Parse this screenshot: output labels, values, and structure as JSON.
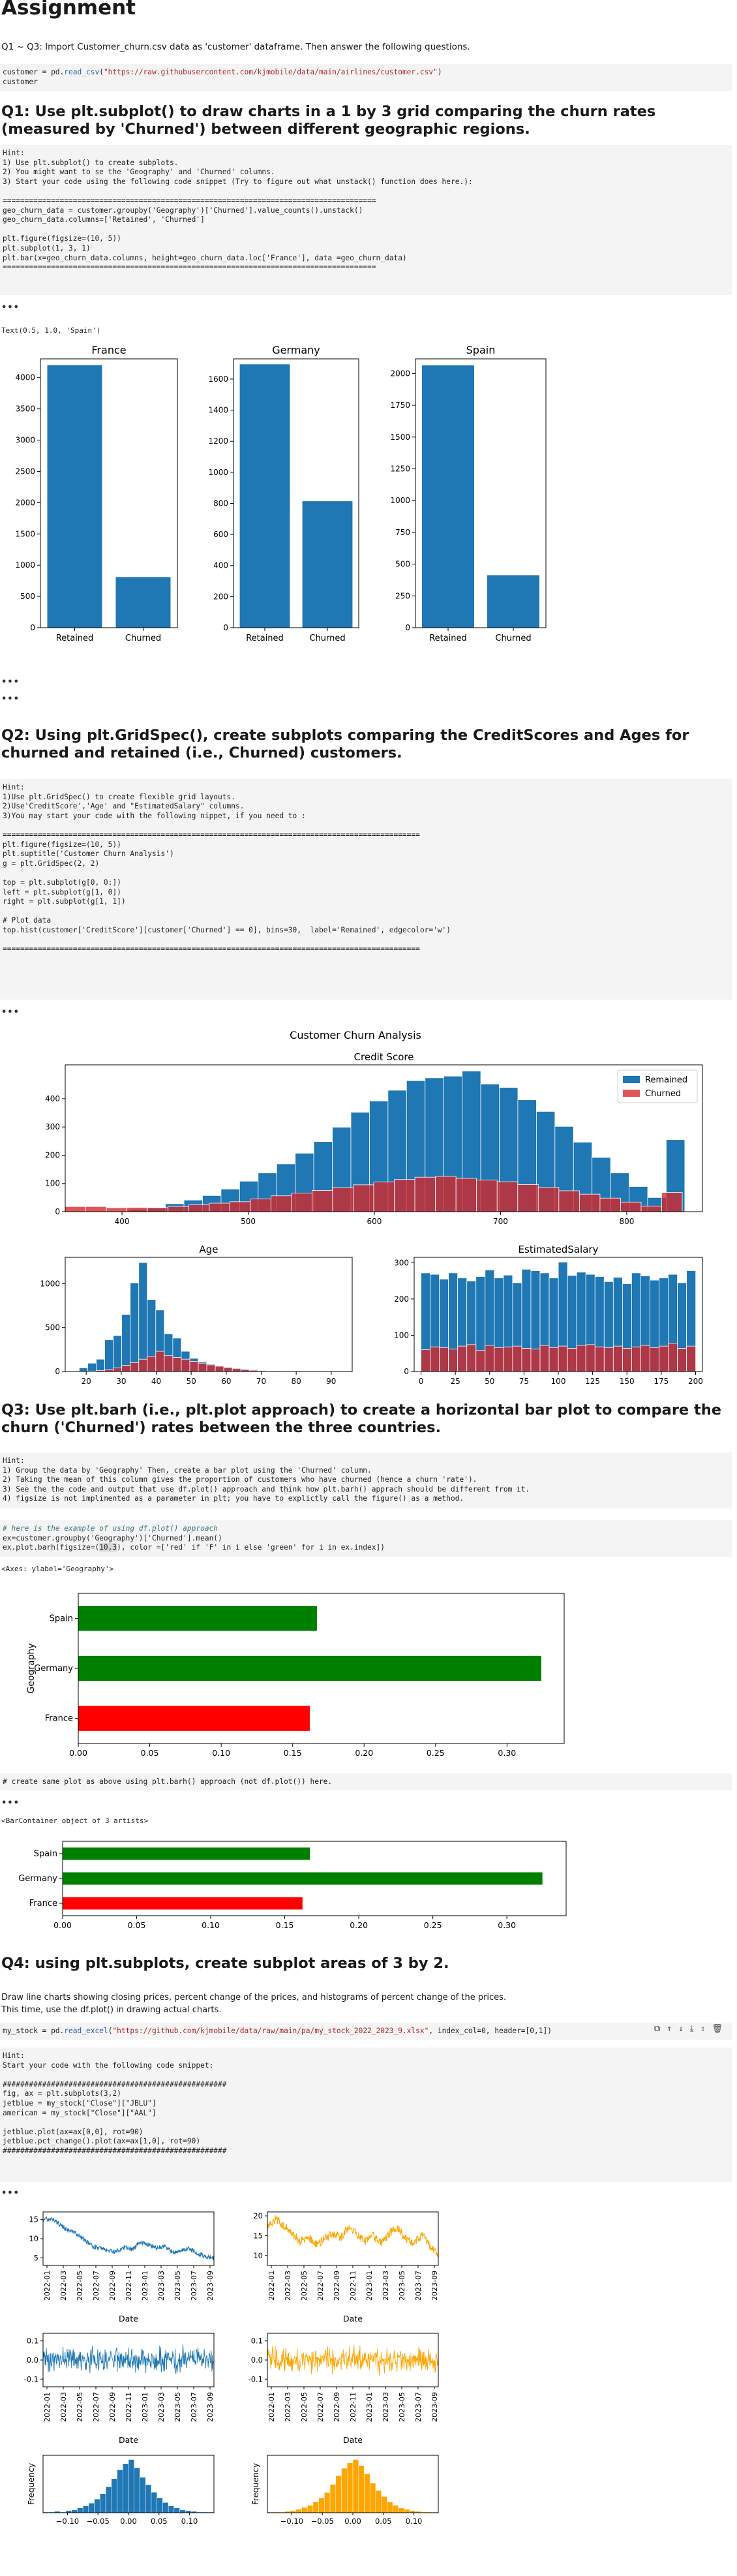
{
  "title": "Assignment",
  "intro": "Q1 ~ Q3: Import Customer_churn.csv data as 'customer' dataframe. Then answer the following questions.",
  "cell0": {
    "line1_a": "customer = pd.",
    "line1_fn": "read_csv",
    "line1_b": "(",
    "line1_str": "\"https://raw.githubusercontent.com/kjmobile/data/main/airlines/customer.csv\"",
    "line1_c": ")",
    "line2": "customer"
  },
  "q1": {
    "heading": "Q1: Use plt.subplot() to draw charts in a 1 by 3 grid comparing the churn rates (measured by 'Churned') between different geographic regions.",
    "hint": "Hint:\n1) Use plt.subplot() to create subplots.\n2) You might want to se the 'Geography' and 'Churned' columns.\n3) Start your code using the following code snippet (Try to figure out what unstack() function does here.):\n\n=====================================================================================\ngeo_churn_data = customer.groupby('Geography')['Churned'].value_counts().unstack()\ngeo_churn_data.columns=['Retained', 'Churned']\n\nplt.figure(figsize=(10, 5))\nplt.subplot(1, 3, 1)\nplt.bar(x=geo_churn_data.columns, height=geo_churn_data.loc['France'], data =geo_churn_data)\n=====================================================================================",
    "output_text": "Text(0.5, 1.0, 'Spain')"
  },
  "q2": {
    "heading": "Q2: Using plt.GridSpec(), create subplots comparing the CreditScores and Ages for churned and retained (i.e., Churned) customers.",
    "hint": "Hint:\n1)Use plt.GridSpec() to create flexible grid layouts.\n2)Use'CreditScore','Age' and \"EstimatedSalary\" columns.\n3)You may start your code with the following nippet, if you need to :\n\n===============================================================================================\nplt.figure(figsize=(10, 5))\nplt.suptitle('Customer Churn Analysis')\ng = plt.GridSpec(2, 2)\n\ntop = plt.subplot(g[0, 0:])\nleft = plt.subplot(g[1, 0])\nright = plt.subplot(g[1, 1])\n\n# Plot data\ntop.hist(customer['CreditScore'][customer['Churned'] == 0], bins=30,  label='Remained', edgecolor='w')\n\n==============================================================================================="
  },
  "q3": {
    "heading": "Q3: Use plt.barh (i.e., plt.plot approach) to create a horizontal bar plot to compare the churn ('Churned') rates between the three countries.",
    "hint": "Hint:\n1) Group the data by 'Geography' Then, create a bar plot using the 'Churned' column.\n2) Taking the mean of this column gives the proportion of customers who have churned (hence a churn 'rate').\n3) See the the code and output that use df.plot() approach and think how plt.barh() apprach should be different from it.\n4) figsize is not implimented as a parameter in plt; you have to explictly call the figure() as a method.",
    "example_comment": "# here is the example of using df.plot() approach",
    "example_line1": "ex=customer.groupby('Geography')['Churned'].mean()",
    "example_line2_a": "ex.plot.barh(figsize=(",
    "example_line2_hl": "10,3",
    "example_line2_b": "), color =['red' if 'F' in i else 'green' for i in ex.index])",
    "output_axes": "<Axes: ylabel='Geography'>",
    "comment_cell": "# create same plot as above using plt.barh() approach (not df.plot()) here.",
    "output_container": "<BarContainer object of 3 artists>"
  },
  "q4": {
    "heading": "Q4: using plt.subplots, create subplot areas of 3 by 2.",
    "desc1": "Draw line charts showing closing prices, percent change of the prices, and histograms of percent change of the prices.",
    "desc2": "This time, use the df.plot() in drawing actual charts.",
    "read_line_a": "my_stock = pd.",
    "read_line_fn": "read_excel",
    "read_line_b": "(",
    "read_line_str": "\"https://github.com/kjmobile/data/raw/main/pa/my_stock_2022_2023_9.xlsx\"",
    "read_line_c": ", index_col=0, header=[0,1])",
    "hint": "Hint:\nStart your code with the following code snippet:\n\n###################################################\nfig, ax = plt.subplots(3,2)\njetblue = my_stock[\"Close\"][\"JBLU\"]\namerican = my_stock[\"Close\"][\"AAL\"]\n\njetblue.plot(ax=ax[0,0], rot=90)\njetblue.pct_change().plot(ax=ax[1,0], rot=90)\n###################################################"
  },
  "ellipsis": "•••",
  "colors": {
    "blue": "#1f77b4",
    "red": "#d62728",
    "orange": "#ffa500",
    "green": "#008000",
    "pure_red": "#ff0000"
  },
  "icons": [
    "copy-icon",
    "arrow-up-icon",
    "arrow-down-icon",
    "insert-icon",
    "export-icon",
    "delete-icon"
  ],
  "chart_data": [
    {
      "type": "bar",
      "title": "France",
      "categories": [
        "Retained",
        "Churned"
      ],
      "values": [
        4200,
        810
      ],
      "ylim": [
        0,
        4300
      ],
      "yticks": [
        0,
        500,
        1000,
        1500,
        2000,
        2500,
        3000,
        3500,
        4000
      ]
    },
    {
      "type": "bar",
      "title": "Germany",
      "categories": [
        "Retained",
        "Churned"
      ],
      "values": [
        1695,
        814
      ],
      "ylim": [
        0,
        1730
      ],
      "yticks": [
        0,
        200,
        400,
        600,
        800,
        1000,
        1200,
        1400,
        1600
      ]
    },
    {
      "type": "bar",
      "title": "Spain",
      "categories": [
        "Retained",
        "Churned"
      ],
      "values": [
        2064,
        413
      ],
      "ylim": [
        0,
        2115
      ],
      "yticks": [
        0,
        250,
        500,
        750,
        1000,
        1250,
        1500,
        1750,
        2000
      ]
    },
    {
      "type": "histogram",
      "suptitle": "Customer Churn Analysis",
      "title": "Credit Score",
      "xlim": [
        355,
        860
      ],
      "xticks": [
        400,
        500,
        600,
        700,
        800
      ],
      "ylim": [
        0,
        520
      ],
      "yticks": [
        0,
        100,
        200,
        300,
        400
      ],
      "legend": "top-right",
      "series": [
        {
          "name": "Remained",
          "bin_start": 405,
          "bin_width": 14.7,
          "values": [
            8,
            15,
            28,
            41,
            57,
            80,
            108,
            137,
            169,
            207,
            248,
            299,
            352,
            392,
            430,
            464,
            474,
            480,
            498,
            452,
            440,
            396,
            355,
            302,
            246,
            192,
            137,
            89,
            50,
            255
          ]
        },
        {
          "name": "Churned",
          "bin_start": 355,
          "bin_width": 16.3,
          "values": [
            18,
            18,
            14,
            15,
            14,
            18,
            24,
            30,
            35,
            45,
            56,
            66,
            75,
            85,
            95,
            105,
            114,
            122,
            125,
            118,
            112,
            106,
            96,
            86,
            74,
            62,
            48,
            34,
            20,
            68
          ]
        }
      ]
    },
    {
      "type": "histogram",
      "title": "Age",
      "xlim": [
        14,
        96
      ],
      "xticks": [
        20,
        30,
        40,
        50,
        60,
        70,
        80,
        90
      ],
      "ylim": [
        0,
        1300
      ],
      "yticks": [
        0,
        500,
        1000
      ],
      "series": [
        {
          "name": "Remained",
          "bin_start": 18,
          "bin_width": 2.43,
          "values": [
            42,
            95,
            140,
            360,
            410,
            650,
            1010,
            1240,
            820,
            700,
            430,
            380,
            230,
            150,
            110,
            85,
            65,
            50,
            40,
            28,
            22,
            15,
            10,
            8,
            6,
            4,
            3,
            2,
            1,
            1
          ]
        },
        {
          "name": "Churned",
          "bin_start": 18,
          "bin_width": 2.43,
          "values": [
            2,
            5,
            10,
            22,
            40,
            70,
            100,
            140,
            175,
            230,
            180,
            160,
            140,
            115,
            95,
            75,
            60,
            45,
            32,
            22,
            14,
            8,
            5,
            3,
            2,
            1,
            1,
            0,
            0,
            0
          ]
        }
      ]
    },
    {
      "type": "histogram",
      "title": "EstimatedSalary",
      "xlim": [
        -5,
        205
      ],
      "xticks": [
        0,
        25,
        50,
        75,
        100,
        125,
        150,
        175,
        200
      ],
      "ylim": [
        0,
        315
      ],
      "yticks": [
        0,
        100,
        200,
        300
      ],
      "series": [
        {
          "name": "Remained",
          "bin_start": 0,
          "bin_width": 6.67,
          "values": [
            272,
            268,
            255,
            272,
            258,
            250,
            262,
            280,
            258,
            266,
            245,
            282,
            278,
            272,
            258,
            302,
            265,
            274,
            268,
            262,
            248,
            260,
            242,
            272,
            264,
            252,
            258,
            268,
            245,
            278
          ]
        },
        {
          "name": "Churned",
          "bin_start": 0,
          "bin_width": 6.67,
          "values": [
            60,
            68,
            66,
            62,
            70,
            74,
            58,
            72,
            66,
            68,
            70,
            64,
            62,
            72,
            66,
            70,
            64,
            72,
            74,
            68,
            66,
            70,
            64,
            68,
            72,
            66,
            70,
            78,
            64,
            70
          ]
        }
      ]
    },
    {
      "type": "barh",
      "categories": [
        "France",
        "Germany",
        "Spain"
      ],
      "values": [
        0.162,
        0.324,
        0.167
      ],
      "colors": [
        "#ff0000",
        "#008000",
        "#008000"
      ],
      "ylabel": "Geography",
      "xlim": [
        0,
        0.34
      ],
      "xticks": [
        0.0,
        0.05,
        0.1,
        0.15,
        0.2,
        0.25,
        0.3
      ]
    },
    {
      "type": "barh",
      "categories": [
        "France",
        "Germany",
        "Spain"
      ],
      "values": [
        0.162,
        0.324,
        0.167
      ],
      "colors": [
        "#ff0000",
        "#008000",
        "#008000"
      ],
      "xlim": [
        0,
        0.34
      ],
      "xticks": [
        0.0,
        0.05,
        0.1,
        0.15,
        0.2,
        0.25,
        0.3
      ]
    },
    {
      "type": "line",
      "xlabel": "Date",
      "xticks": [
        "2022-01",
        "2022-03",
        "2022-05",
        "2022-07",
        "2022-09",
        "2022-11",
        "2023-01",
        "2023-03",
        "2023-05",
        "2023-07",
        "2023-09"
      ],
      "yticks": [
        5,
        10,
        15
      ],
      "ylim": [
        3,
        17
      ],
      "series": [
        {
          "color": "#1f77b4",
          "anchors": [
            14.9,
            15.3,
            13.8,
            12.2,
            11.5,
            9.8,
            8.1,
            7.4,
            6.9,
            6.5,
            7.8,
            7.1,
            9.2,
            8.4,
            7.6,
            7.9,
            6.4,
            6.9,
            7.5,
            6.1,
            5.4,
            4.9
          ]
        }
      ]
    },
    {
      "type": "line",
      "xlabel": "",
      "yticks": [
        10,
        15,
        20
      ],
      "ylim": [
        7.5,
        21
      ],
      "series": [
        {
          "color": "#ffa500",
          "anchors": [
            17.0,
            19.4,
            17.5,
            15.8,
            13.5,
            14.7,
            12.8,
            14.2,
            15.4,
            14.5,
            17.2,
            15.3,
            13.6,
            14.9,
            13.3,
            15.6,
            16.9,
            14.3,
            13.1,
            15.2,
            12.4,
            10.6
          ]
        }
      ]
    },
    {
      "type": "line",
      "xlabel": "Date",
      "xticks": [
        "2022-01",
        "2022-03",
        "2022-05",
        "2022-07",
        "2022-09",
        "2022-11",
        "2023-01",
        "2023-03",
        "2023-05",
        "2023-07",
        "2023-09"
      ],
      "yticks": [
        -0.1,
        0.0,
        0.1
      ],
      "ylim": [
        -0.14,
        0.14
      ],
      "series": [
        {
          "color": "#1f77b4",
          "amplitude": 0.045
        }
      ]
    },
    {
      "type": "line",
      "xlabel": "",
      "yticks": [
        -0.1,
        0.0,
        0.1
      ],
      "ylim": [
        -0.14,
        0.14
      ],
      "series": [
        {
          "color": "#ffa500",
          "amplitude": 0.045
        }
      ]
    },
    {
      "type": "histogram",
      "ylabel": "Frequency",
      "xticks": [
        -0.1,
        -0.05,
        0.0,
        0.05,
        0.1
      ],
      "xlim": [
        -0.14,
        0.14
      ],
      "series": [
        {
          "color": "#1f77b4",
          "values": [
            1,
            1,
            2,
            1,
            3,
            4,
            7,
            10,
            14,
            20,
            28,
            38,
            50,
            63,
            72,
            78,
            66,
            52,
            41,
            30,
            22,
            15,
            10,
            7,
            4,
            3,
            2,
            1,
            1,
            1
          ]
        }
      ]
    },
    {
      "type": "histogram",
      "ylabel": "Frequency",
      "xticks": [
        -0.1,
        -0.05,
        0.0,
        0.05,
        0.1
      ],
      "xlim": [
        -0.14,
        0.14
      ],
      "series": [
        {
          "color": "#ffa500",
          "values": [
            1,
            1,
            1,
            2,
            3,
            5,
            8,
            11,
            16,
            22,
            30,
            42,
            55,
            66,
            74,
            79,
            70,
            58,
            44,
            33,
            24,
            16,
            11,
            7,
            5,
            3,
            2,
            1,
            1,
            1
          ]
        }
      ]
    }
  ]
}
